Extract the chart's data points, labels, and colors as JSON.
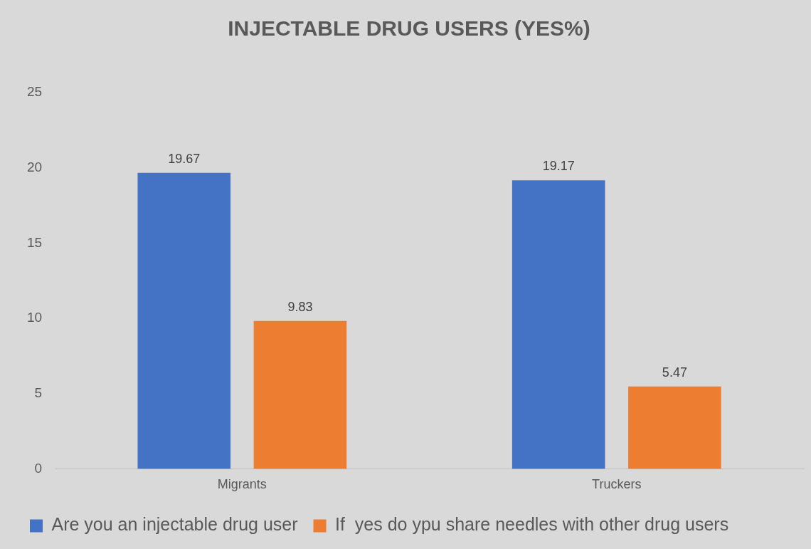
{
  "chart_data": {
    "type": "bar",
    "title": "INJECTABLE DRUG USERS (YES%)",
    "categories": [
      "Migrants",
      "Truckers"
    ],
    "series": [
      {
        "name": "Are you an injectable drug user",
        "color": "#4472c4",
        "values": [
          19.67,
          19.17
        ]
      },
      {
        "name": "If  yes do ypu share needles with other drug users",
        "color": "#ed7d31",
        "values": [
          9.83,
          5.47
        ]
      }
    ],
    "ylim": [
      0,
      25
    ],
    "yticks": [
      0,
      5,
      10,
      15,
      20,
      25
    ],
    "grid": false,
    "legend": "bottom",
    "data_labels": true
  }
}
